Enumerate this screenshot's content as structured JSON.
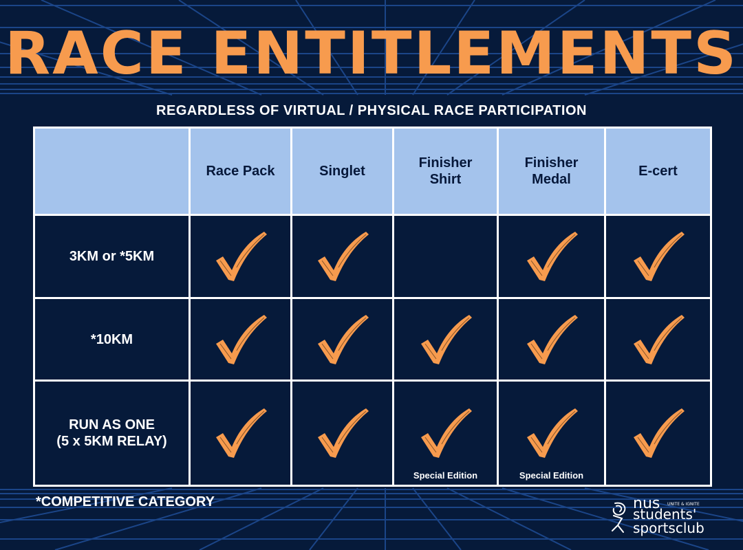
{
  "title": "RACE ENTITLEMENTS",
  "subtitle": "REGARDLESS OF VIRTUAL / PHYSICAL RACE PARTICIPATION",
  "columns": [
    "",
    "Race Pack",
    "Singlet",
    "Finisher\nShirt",
    "Finisher\nMedal",
    "E-cert"
  ],
  "rows": [
    {
      "label": "3KM or *5KM",
      "cells": [
        true,
        true,
        false,
        true,
        true
      ],
      "notes": [
        "",
        "",
        "",
        "",
        ""
      ]
    },
    {
      "label": "*10KM",
      "cells": [
        true,
        true,
        true,
        true,
        true
      ],
      "notes": [
        "",
        "",
        "",
        "",
        ""
      ]
    },
    {
      "label": "RUN AS ONE\n(5 x 5KM RELAY)",
      "cells": [
        true,
        true,
        true,
        true,
        true
      ],
      "notes": [
        "",
        "",
        "Special Edition",
        "Special Edition",
        ""
      ]
    }
  ],
  "footnote": "*COMPETITIVE CATEGORY",
  "logo": {
    "nus": "nus",
    "small": "UNITE & IGNITE",
    "line1": "students'",
    "line2": "sportsclub"
  },
  "colors": {
    "background": "#061a3a",
    "accent": "#f79b4e",
    "header_fill": "#a4c3ec",
    "grid": "#1f4d96",
    "text": "#ffffff"
  },
  "icons": {
    "check": "checkmark-icon"
  }
}
